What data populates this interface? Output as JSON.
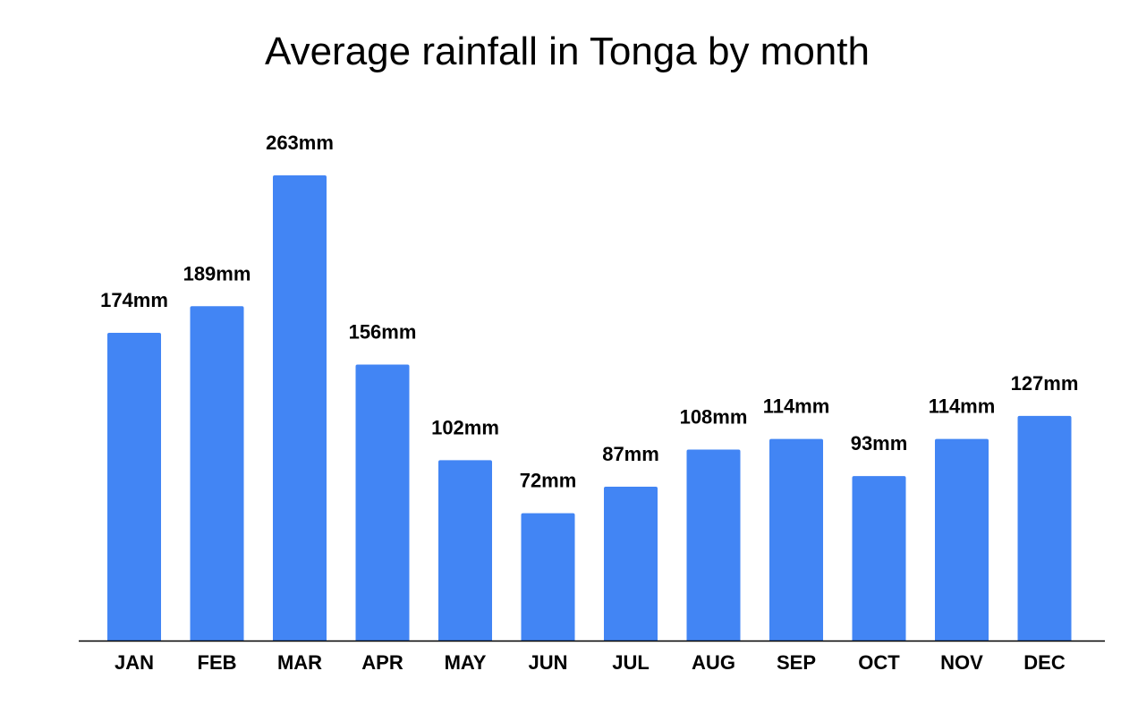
{
  "chart_data": {
    "type": "bar",
    "title": "Average rainfall in Tonga by month",
    "xlabel": "",
    "ylabel": "",
    "categories": [
      "JAN",
      "FEB",
      "MAR",
      "APR",
      "MAY",
      "JUN",
      "JUL",
      "AUG",
      "SEP",
      "OCT",
      "NOV",
      "DEC"
    ],
    "values": [
      174,
      189,
      263,
      156,
      102,
      72,
      87,
      108,
      114,
      93,
      114,
      127
    ],
    "data_labels": [
      "174mm",
      "189mm",
      "263mm",
      "156mm",
      "102mm",
      "72mm",
      "87mm",
      "108mm",
      "114mm",
      "93mm",
      "114mm",
      "127mm"
    ],
    "ylim": [
      0,
      263
    ],
    "grid": false,
    "legend": "none",
    "colors": {
      "bar": "#4285f4",
      "axis": "#000000"
    }
  }
}
